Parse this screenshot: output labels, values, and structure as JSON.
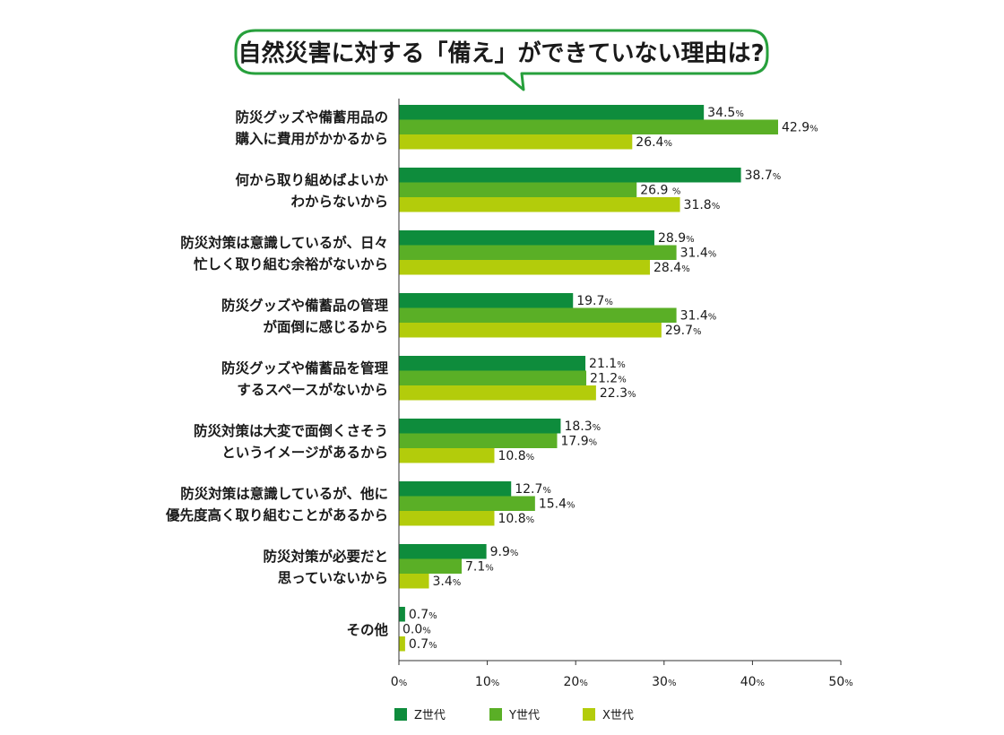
{
  "chart_data": {
    "type": "bar",
    "orientation": "horizontal",
    "title": "自然災害に対する「備え」ができていない理由は?",
    "categories": [
      [
        "防災グッズや備蓄用品の",
        "購入に費用がかかるから"
      ],
      [
        "何から取り組めばよいか",
        "わからないから"
      ],
      [
        "防災対策は意識しているが、日々",
        "忙しく取り組む余裕がないから"
      ],
      [
        "防災グッズや備蓄品の管理",
        "が面倒に感じるから"
      ],
      [
        "防災グッズや備蓄品を管理",
        "するスペースがないから"
      ],
      [
        "防災対策は大変で面倒くさそう",
        "というイメージがあるから"
      ],
      [
        "防災対策は意識しているが、他に",
        "優先度高く取り組むことがあるから"
      ],
      [
        "防災対策が必要だと",
        "思っていないから"
      ],
      [
        "その他"
      ]
    ],
    "series": [
      {
        "name": "Z世代",
        "color": "#0e8c3c",
        "values": [
          34.5,
          38.7,
          28.9,
          19.7,
          21.1,
          18.3,
          12.7,
          9.9,
          0.7
        ],
        "labels": [
          "34.5",
          "38.7",
          "28.9",
          "19.7",
          "21.1",
          "18.3",
          "12.7",
          "9.9",
          "0.7"
        ]
      },
      {
        "name": "Y世代",
        "color": "#5aaf26",
        "values": [
          42.9,
          26.9,
          31.4,
          31.4,
          21.2,
          17.9,
          15.4,
          7.1,
          0.0
        ],
        "labels": [
          "42.9",
          "26.9 ",
          "31.4",
          "31.4",
          "21.2",
          "17.9",
          "15.4",
          "7.1",
          "0.0"
        ]
      },
      {
        "name": "X世代",
        "color": "#b3cc0b",
        "values": [
          26.4,
          31.8,
          28.4,
          29.7,
          22.3,
          10.8,
          10.8,
          3.4,
          0.7
        ],
        "labels": [
          "26.4",
          "31.8",
          "28.4",
          "29.7",
          "22.3",
          "10.8",
          "10.8",
          "3.4",
          "0.7"
        ]
      }
    ],
    "unit": "%",
    "xlim": [
      0,
      50
    ],
    "xticks": [
      0,
      10,
      20,
      30,
      40,
      50
    ],
    "gridlines": false,
    "legend_position": "bottom"
  },
  "colors": {
    "frame": "#27a03c",
    "axis": "#333333"
  }
}
